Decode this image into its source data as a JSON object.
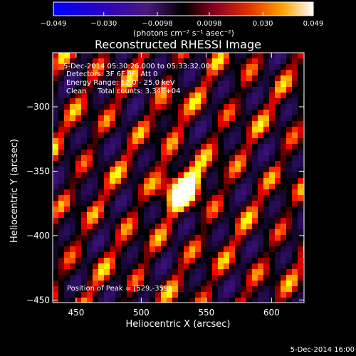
{
  "colorbar": {
    "ticks": [
      "−0.049",
      "−0.030",
      "−0.0098",
      "0.0098",
      "0.030",
      "0.049"
    ],
    "tick_values": [
      -0.049,
      -0.03,
      -0.0098,
      0.0098,
      0.03,
      0.049
    ],
    "range": [
      -0.049,
      0.049
    ],
    "unit_label": "(photons cm⁻² s⁻¹ asec⁻²)"
  },
  "chart_data": {
    "type": "heatmap",
    "title": "Reconstructed RHESSI Image",
    "xlabel": "Heliocentric X (arcsec)",
    "ylabel": "Heliocentric Y (arcsec)",
    "xlim": [
      432,
      625
    ],
    "ylim": [
      -452,
      -258
    ],
    "x_ticks": [
      450,
      500,
      550,
      600
    ],
    "y_ticks": [
      -300,
      -350,
      -400,
      -450
    ],
    "y_tick_labels": [
      "−300",
      "−350",
      "−400",
      "−450"
    ],
    "colormap": "hot-with-blue-negative",
    "peak": {
      "x": 529,
      "y": -359
    },
    "annotations": {
      "time_range": "5-Dec-2014 05:30:26.000 to 05:33:32.000",
      "detectors": "Detectors: 3F 6F 9F, Att 0",
      "energy": "Energy Range: 12.0 - 25.0 keV",
      "clean": "Clean     Total counts: 3.34E+04",
      "peak_text": "Position of Peak = [529,-359]"
    }
  },
  "footer": {
    "timestamp": "5-Dec-2014 16:00"
  }
}
